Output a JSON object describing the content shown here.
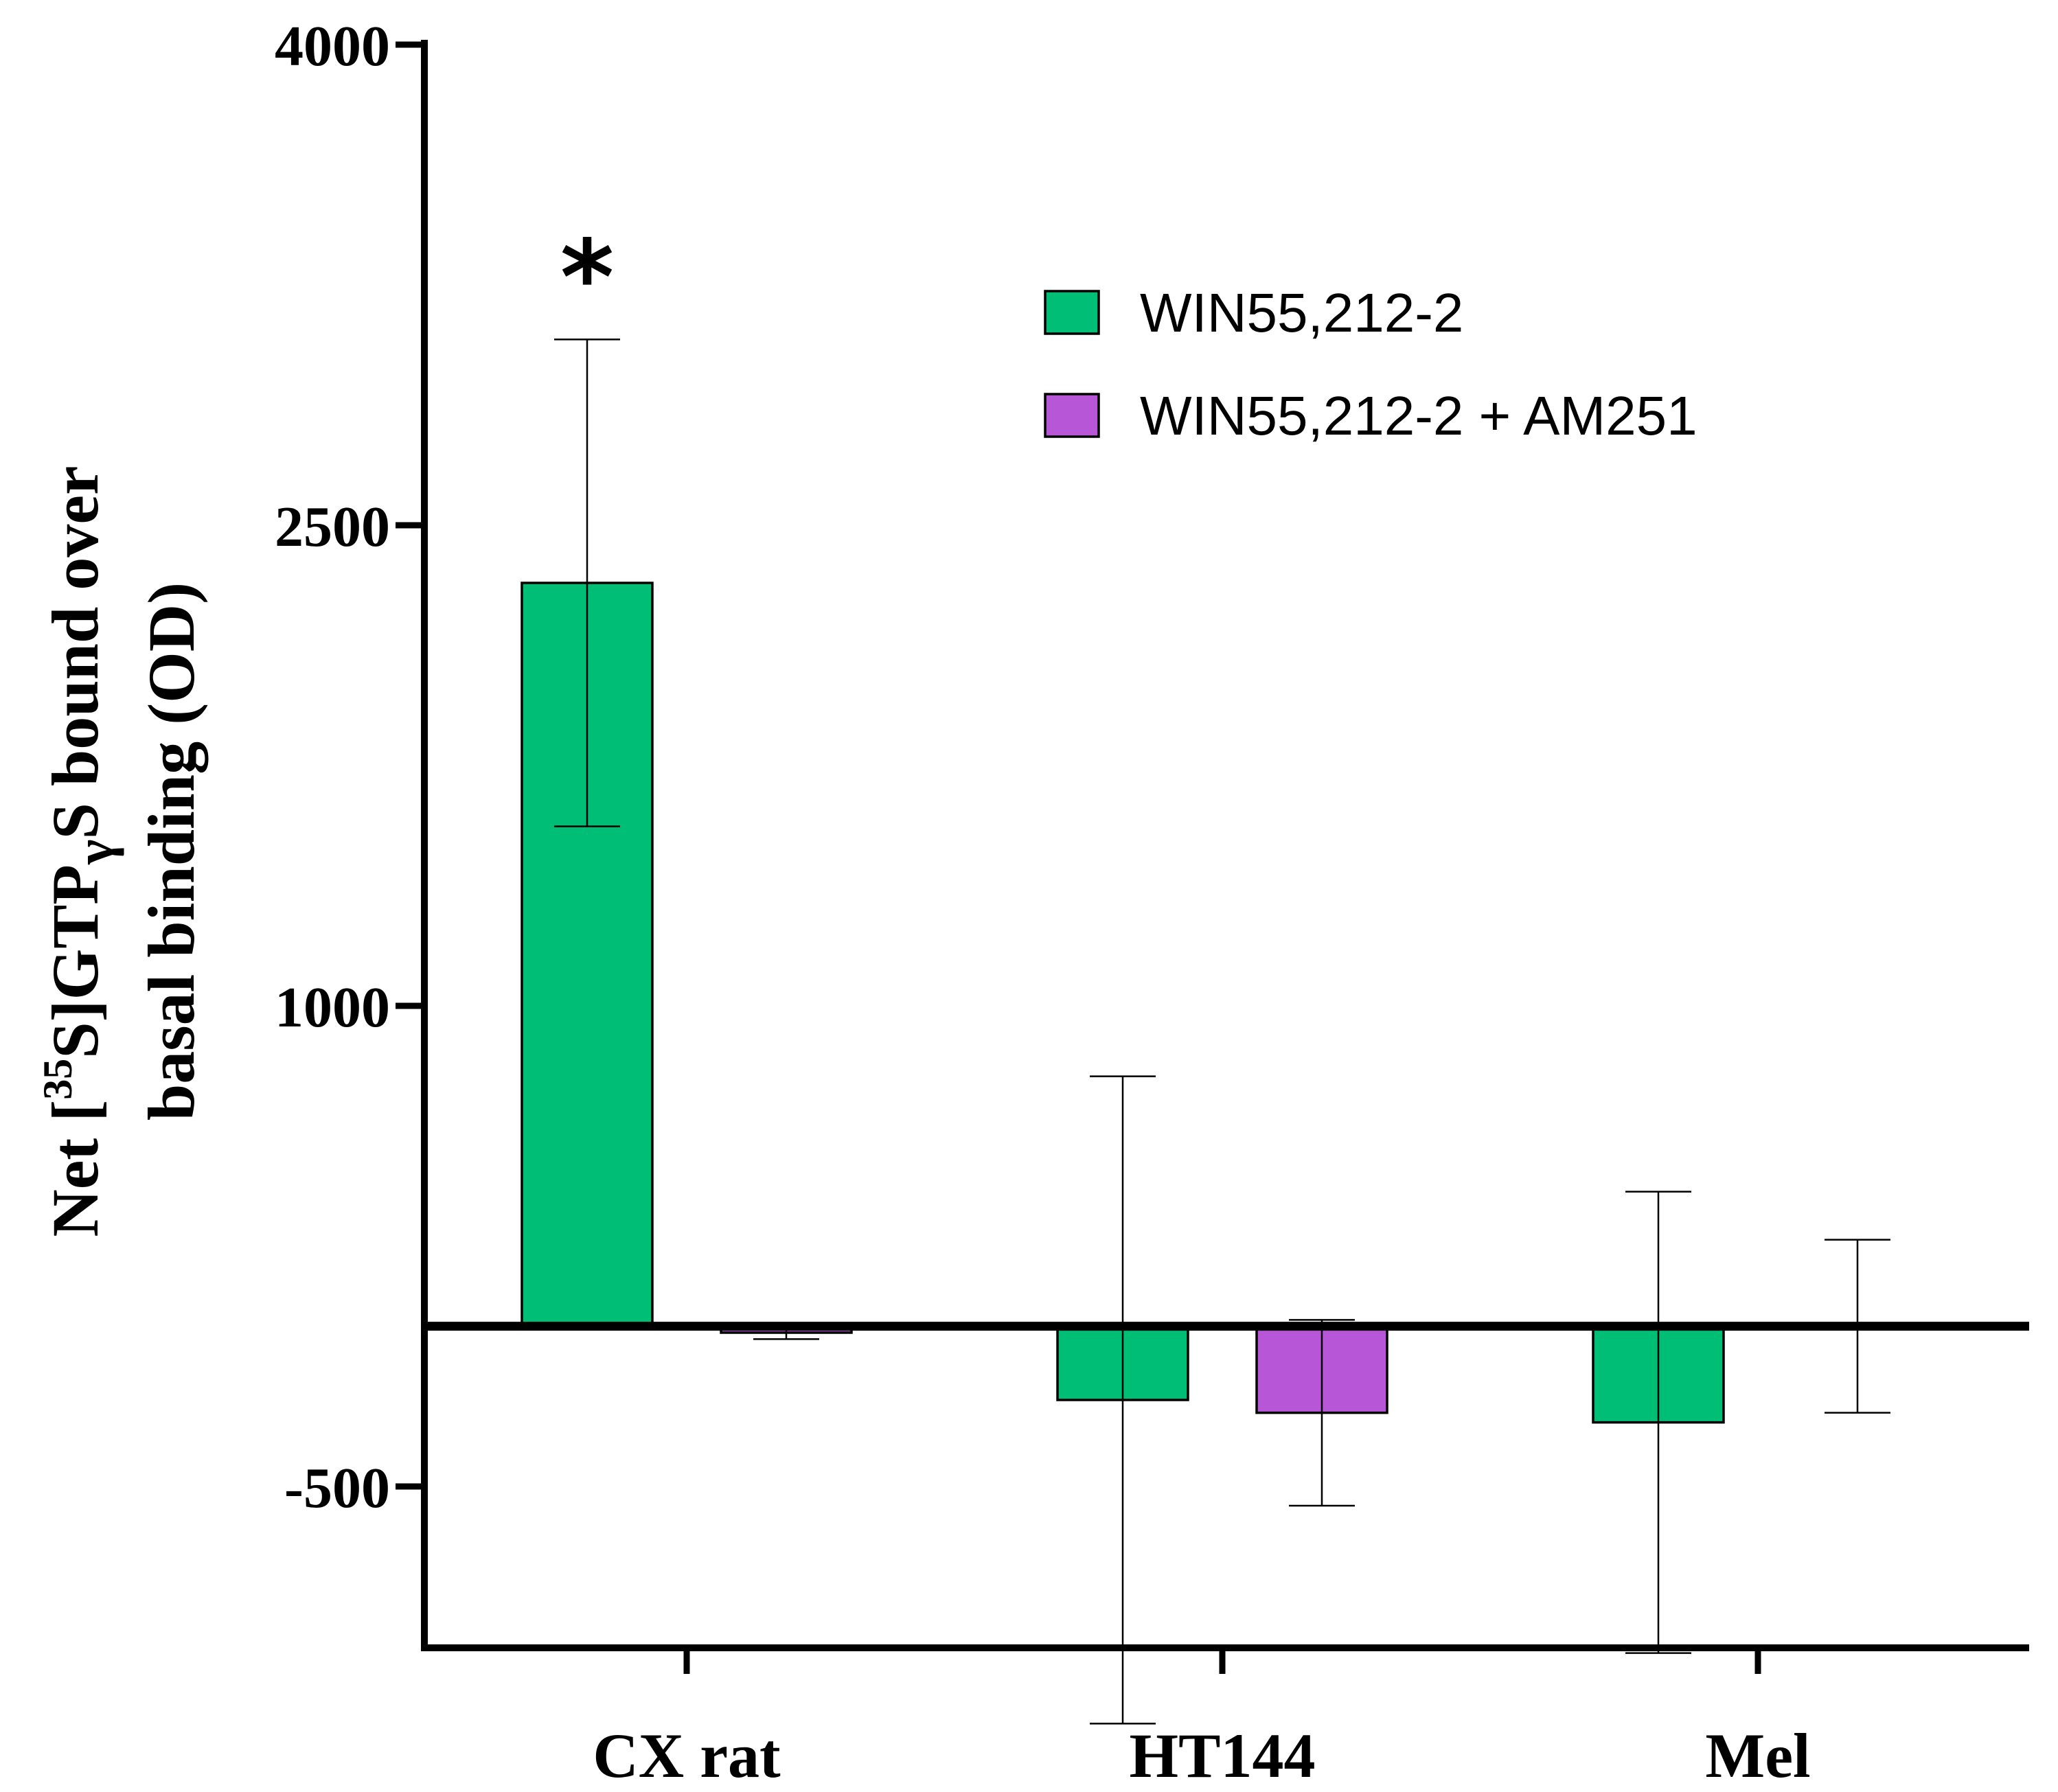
{
  "chart_data": {
    "type": "bar",
    "categories": [
      "CX rat",
      "HT144",
      "Mel"
    ],
    "series": [
      {
        "name": "WIN55,212-2",
        "color": "#00BE76",
        "values": [
          2320,
          -230,
          -300
        ],
        "error": [
          760,
          1010,
          720
        ]
      },
      {
        "name": "WIN55,212-2 + AM251",
        "color": "#B856D8",
        "values": [
          -20,
          -270,
          0
        ],
        "error": [
          20,
          290,
          270
        ]
      }
    ],
    "ylim": [
      -1000,
      4000
    ],
    "yticks": [
      4000,
      2500,
      1000,
      -500
    ],
    "ytick_labels": [
      "4000",
      "2500",
      "1000",
      "-500"
    ],
    "ylabel": {
      "line1_pre": "Net [",
      "line1_sup": "35",
      "line1_mid": "S]GTP",
      "line1_greek": "γ",
      "line1_post": "S bound over",
      "line2": "basal binding (OD)"
    },
    "annotations": [
      {
        "category": "CX rat",
        "series": 0,
        "text": "*"
      }
    ],
    "legend_position": "top-right",
    "grid": false
  }
}
